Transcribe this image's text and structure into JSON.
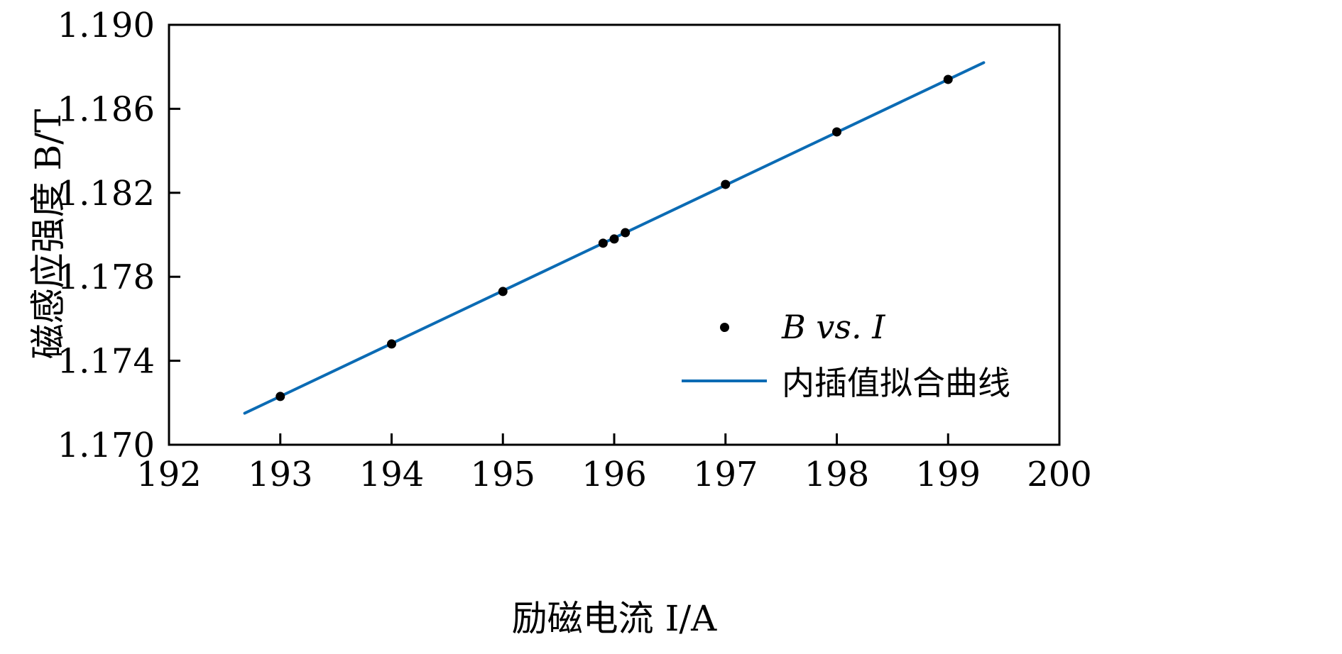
{
  "chart_data": {
    "type": "scatter",
    "title": "",
    "xlabel": "励磁电流 I/A",
    "ylabel": "磁感应强度 B/T",
    "xlim": [
      192,
      200
    ],
    "ylim": [
      1.17,
      1.19
    ],
    "x_ticks": [
      192,
      193,
      194,
      195,
      196,
      197,
      198,
      199,
      200
    ],
    "x_tick_labels": [
      "192",
      "193",
      "194",
      "195",
      "196",
      "197",
      "198",
      "199",
      "200"
    ],
    "y_ticks": [
      1.17,
      1.174,
      1.178,
      1.182,
      1.186,
      1.19
    ],
    "y_tick_labels": [
      "1.170",
      "1.174",
      "1.178",
      "1.182",
      "1.186",
      "1.190"
    ],
    "grid": false,
    "legend_position": "right-center",
    "series": [
      {
        "name": "B vs. I",
        "type": "scatter",
        "color": "#000000",
        "marker": "dot",
        "points": [
          [
            193.0,
            1.1723
          ],
          [
            194.0,
            1.1748
          ],
          [
            195.0,
            1.1773
          ],
          [
            195.9,
            1.1796
          ],
          [
            196.0,
            1.1798
          ],
          [
            196.1,
            1.1801
          ],
          [
            197.0,
            1.1824
          ],
          [
            198.0,
            1.1849
          ],
          [
            199.0,
            1.1874
          ]
        ]
      },
      {
        "name": "内插值拟合曲线",
        "type": "line",
        "color": "#0b6bb4",
        "points": [
          [
            192.68,
            1.1715
          ],
          [
            199.32,
            1.1882
          ]
        ]
      }
    ],
    "colors": {
      "axis": "#000000",
      "fit_line": "#0b6bb4",
      "marker": "#000000",
      "background": "#ffffff"
    }
  }
}
